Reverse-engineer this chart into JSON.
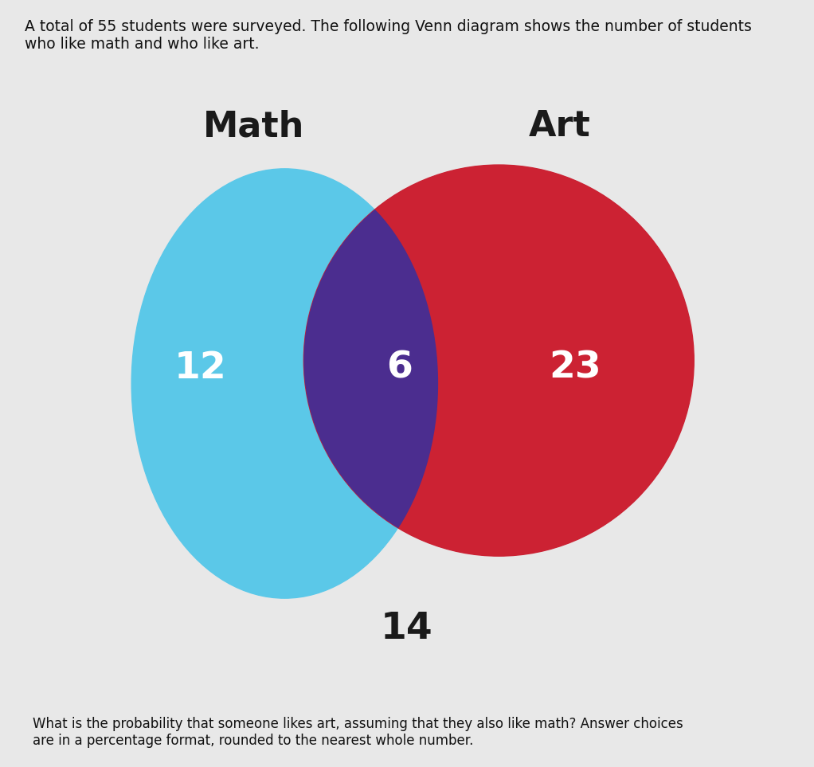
{
  "title_text": "A total of 55 students were surveyed. The following Venn diagram shows the number of students\nwho like math and who like art.",
  "question_text": "What is the probability that someone likes art, assuming that they also like math? Answer choices\nare in a percentage format, rounded to the nearest whole number.",
  "math_label": "Math",
  "art_label": "Art",
  "math_only_value": "12",
  "intersection_value": "6",
  "art_only_value": "23",
  "outside_value": "14",
  "math_circle_color": "#5BC8E8",
  "art_circle_color": "#CC2233",
  "intersection_color": "#4B2D8F",
  "background_color": "#CCCCCC",
  "outer_background": "#E8E8E8",
  "number_fontsize": 34,
  "label_fontsize": 32,
  "title_fontsize": 13.5,
  "question_fontsize": 12
}
